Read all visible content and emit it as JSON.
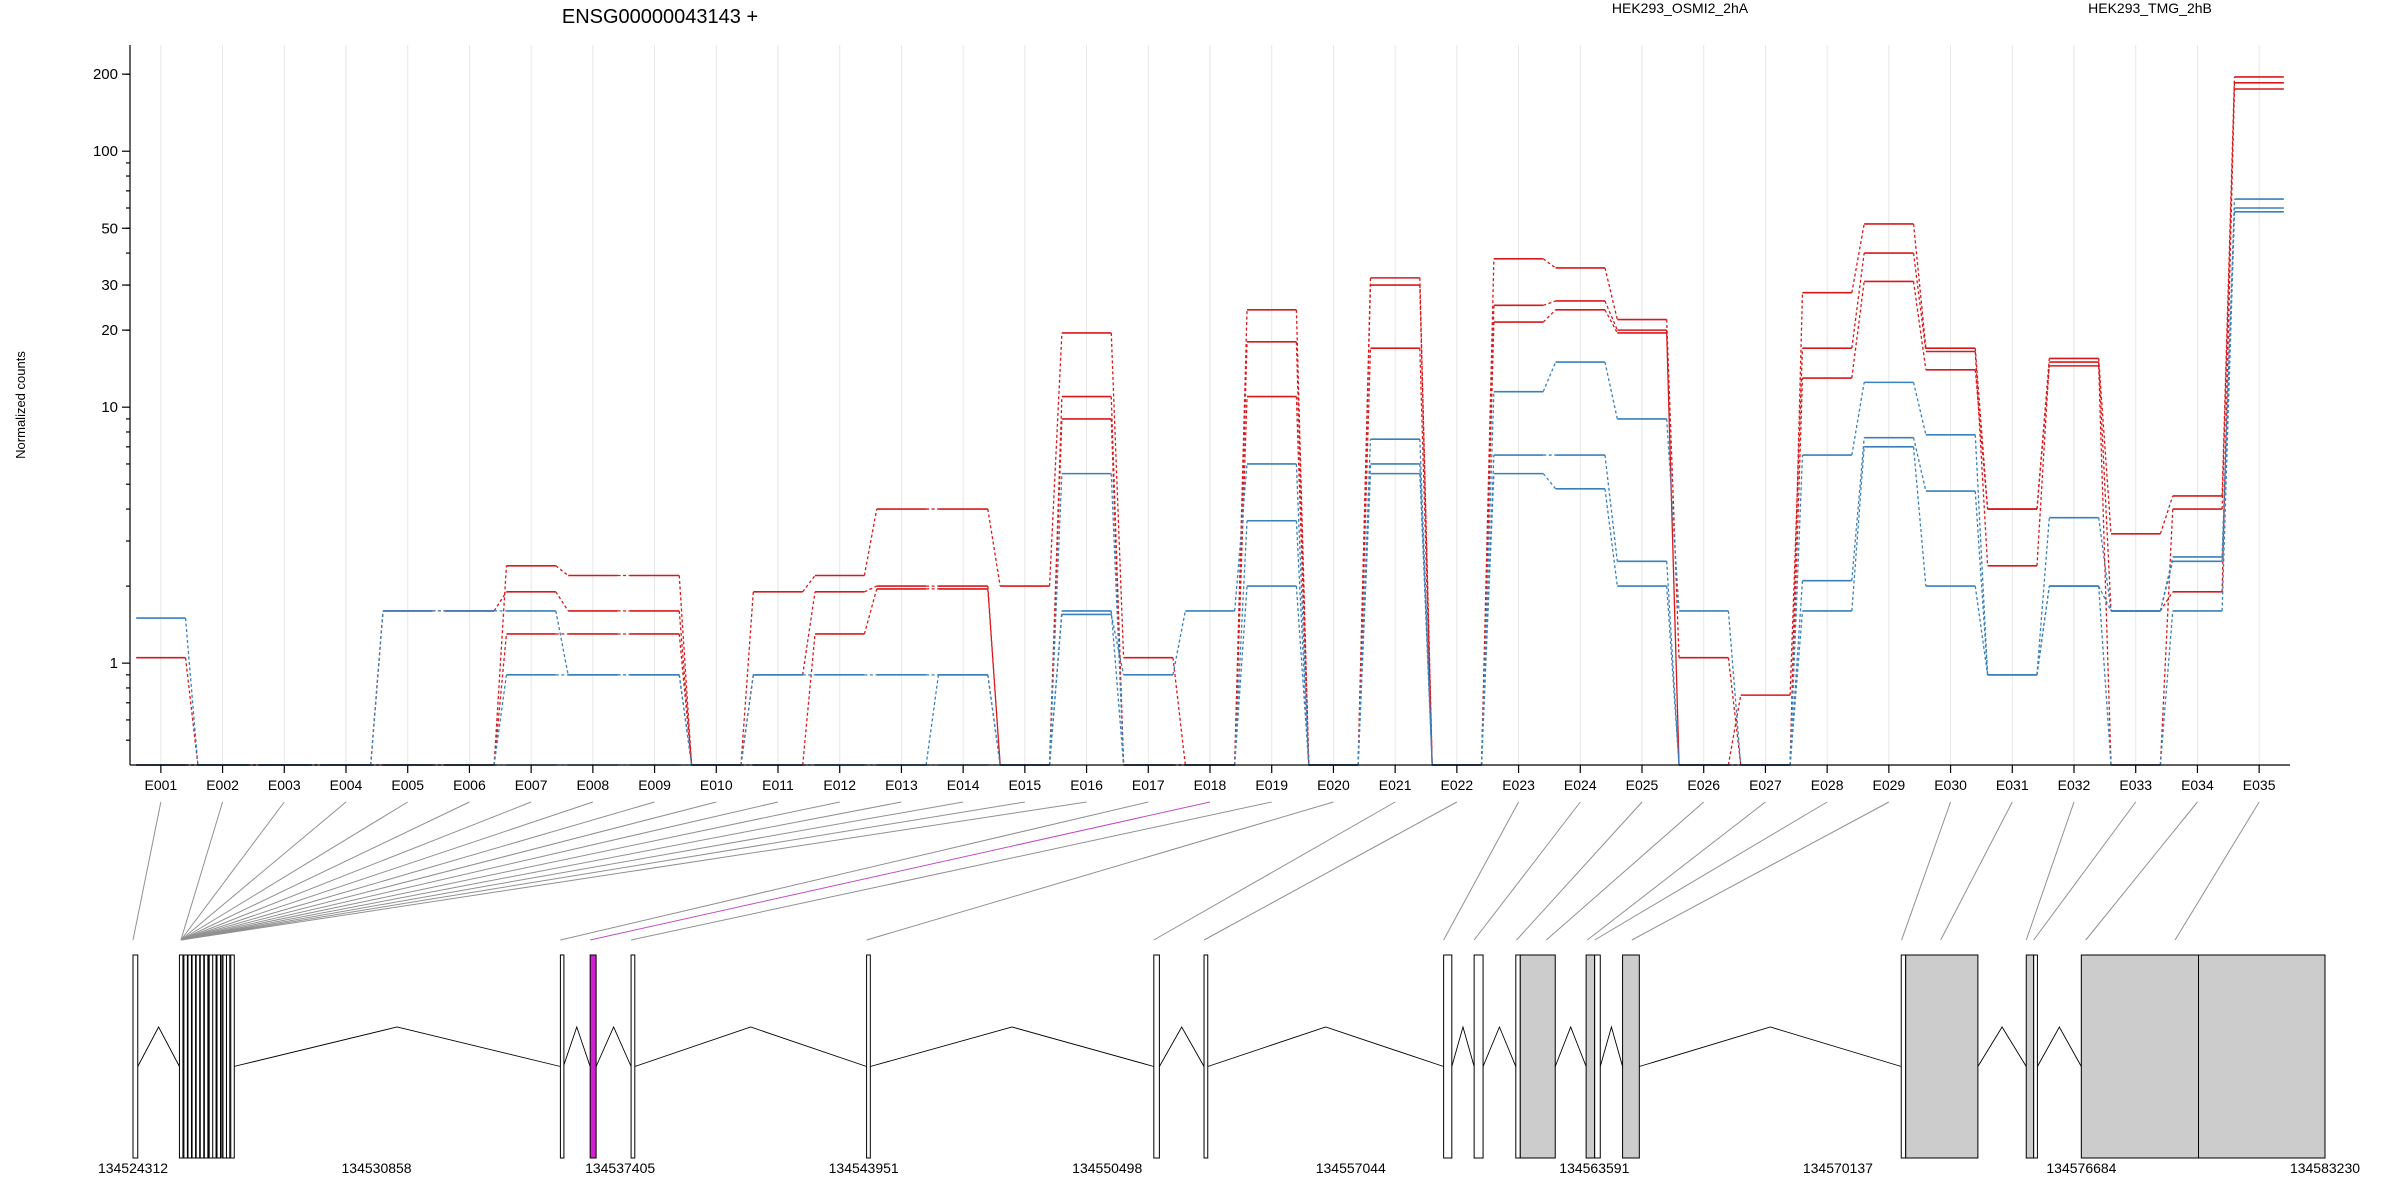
{
  "title": "ENSG00000043143 +",
  "ylabel": "Normalized counts",
  "colors": {
    "HEK293_OSMI2_2hA": "#d7191c",
    "HEK293_TMG_2hB": "#3a80ba",
    "highlight": "#d21fd2",
    "exon_fill_gray": "#cccccc"
  },
  "chart_data": {
    "type": "line",
    "title": "ENSG00000043143 +",
    "ylabel": "Normalized counts",
    "yscale": "log",
    "ylim": [
      0.4,
      260
    ],
    "yticks": [
      1,
      10,
      20,
      30,
      50,
      100,
      200
    ],
    "grid": true,
    "legend_placement": "top-right",
    "categories": [
      "E001",
      "E002",
      "E003",
      "E004",
      "E005",
      "E006",
      "E007",
      "E008",
      "E009",
      "E010",
      "E011",
      "E012",
      "E013",
      "E014",
      "E015",
      "E016",
      "E017",
      "E018",
      "E019",
      "E020",
      "E021",
      "E022",
      "E023",
      "E024",
      "E025",
      "E026",
      "E027",
      "E028",
      "E029",
      "E030",
      "E031",
      "E032",
      "E033",
      "E034",
      "E035"
    ],
    "groups": [
      "HEK293_OSMI2_2hA",
      "HEK293_TMG_2hB"
    ],
    "series": [
      {
        "group": "HEK293_OSMI2_2hA",
        "values": [
          1.05,
          0.4,
          0.4,
          0.4,
          0.4,
          0.4,
          2.4,
          2.2,
          2.2,
          0.4,
          1.9,
          2.2,
          4.0,
          4.0,
          2.0,
          19.5,
          1.05,
          0.4,
          24.0,
          0.4,
          32.0,
          0.4,
          38.0,
          35.0,
          22.0,
          1.05,
          0.4,
          28.0,
          52.0,
          17.0,
          4.0,
          15.5,
          3.2,
          4.5,
          195
        ]
      },
      {
        "group": "HEK293_OSMI2_2hA",
        "values": [
          0.4,
          0.4,
          0.4,
          0.4,
          1.6,
          1.6,
          1.9,
          1.6,
          1.6,
          0.4,
          0.9,
          1.9,
          2.0,
          2.0,
          0.4,
          11.0,
          0.4,
          0.4,
          18.0,
          0.4,
          30.0,
          0.4,
          25.0,
          26.0,
          20.0,
          0.4,
          0.75,
          17.0,
          40.0,
          16.5,
          2.4,
          15.0,
          1.6,
          1.9,
          185
        ]
      },
      {
        "group": "HEK293_OSMI2_2hA",
        "values": [
          0.4,
          0.4,
          0.4,
          0.4,
          0.4,
          0.4,
          1.3,
          1.3,
          1.3,
          0.4,
          0.4,
          1.3,
          1.95,
          1.95,
          0.4,
          9.0,
          0.4,
          0.4,
          11.0,
          0.4,
          17.0,
          0.4,
          21.5,
          24.0,
          19.5,
          0.4,
          0.4,
          13.0,
          31.0,
          14.0,
          4.0,
          14.5,
          0.4,
          4.0,
          175
        ]
      },
      {
        "group": "HEK293_TMG_2hB",
        "values": [
          1.5,
          0.4,
          0.4,
          0.4,
          1.6,
          1.6,
          1.6,
          0.9,
          0.9,
          0.4,
          0.9,
          0.9,
          0.9,
          0.9,
          0.4,
          1.55,
          0.9,
          1.6,
          6.0,
          0.4,
          7.5,
          0.4,
          11.5,
          15.0,
          9.0,
          1.6,
          0.4,
          6.5,
          12.5,
          7.8,
          0.9,
          3.7,
          1.6,
          2.6,
          65
        ]
      },
      {
        "group": "HEK293_TMG_2hB",
        "values": [
          0.4,
          0.4,
          0.4,
          0.4,
          0.4,
          0.4,
          0.9,
          0.9,
          0.9,
          0.4,
          0.4,
          0.4,
          0.4,
          0.9,
          0.4,
          1.6,
          0.4,
          0.4,
          3.6,
          0.4,
          6.0,
          0.4,
          6.5,
          6.5,
          2.5,
          0.4,
          0.4,
          2.1,
          7.6,
          4.7,
          0.9,
          2.0,
          1.6,
          2.5,
          60
        ]
      },
      {
        "group": "HEK293_TMG_2hB",
        "values": [
          0.4,
          0.4,
          0.4,
          0.4,
          0.4,
          0.4,
          0.4,
          0.4,
          0.4,
          0.4,
          0.4,
          0.4,
          0.4,
          0.4,
          0.4,
          5.5,
          0.4,
          0.4,
          2.0,
          0.4,
          5.5,
          0.4,
          5.5,
          4.8,
          2.0,
          0.4,
          0.4,
          1.6,
          7.0,
          2.0,
          0.9,
          2.0,
          0.4,
          1.6,
          58
        ]
      }
    ]
  },
  "legend": [
    {
      "label": "HEK293_OSMI2_2hA",
      "color": "#d7191c"
    },
    {
      "label": "HEK293_TMG_2hB",
      "color": "#3a80ba"
    }
  ],
  "gene_model": {
    "range": [
      134524312,
      134583230
    ],
    "tick_labels": [
      "134524312",
      "134530858",
      "134537405",
      "134543951",
      "134550498",
      "134557044",
      "134563591",
      "134570137",
      "134576684",
      "134583230"
    ],
    "highlight_exon": "E018",
    "exons": [
      {
        "id": "E001",
        "start": 134524312,
        "end": 134524440,
        "fill": "white"
      },
      {
        "id": "E002",
        "start": 134525560,
        "end": 134525650,
        "fill": "white"
      },
      {
        "id": "E003",
        "start": 134525680,
        "end": 134525760,
        "fill": "white"
      },
      {
        "id": "E004",
        "start": 134525790,
        "end": 134525870,
        "fill": "white"
      },
      {
        "id": "E005",
        "start": 134525900,
        "end": 134525980,
        "fill": "white"
      },
      {
        "id": "E006",
        "start": 134526010,
        "end": 134526090,
        "fill": "white"
      },
      {
        "id": "E007",
        "start": 134526120,
        "end": 134526200,
        "fill": "white"
      },
      {
        "id": "E008",
        "start": 134526230,
        "end": 134526310,
        "fill": "white"
      },
      {
        "id": "E009",
        "start": 134526340,
        "end": 134526420,
        "fill": "white"
      },
      {
        "id": "E010",
        "start": 134526450,
        "end": 134526540,
        "fill": "white"
      },
      {
        "id": "E011",
        "start": 134526570,
        "end": 134526660,
        "fill": "white"
      },
      {
        "id": "E012",
        "start": 134526700,
        "end": 134526780,
        "fill": "white"
      },
      {
        "id": "E013",
        "start": 134526820,
        "end": 134526900,
        "fill": "white"
      },
      {
        "id": "E014",
        "start": 134526940,
        "end": 134527020,
        "fill": "white"
      },
      {
        "id": "E015",
        "start": 134526360,
        "end": 134526440,
        "fill": "white"
      },
      {
        "id": "E016",
        "start": 134526730,
        "end": 134526810,
        "fill": "white"
      },
      {
        "id": "E017",
        "start": 134535800,
        "end": 134535880,
        "fill": "white"
      },
      {
        "id": "E018",
        "start": 134536600,
        "end": 134536760,
        "fill": "magenta"
      },
      {
        "id": "E019",
        "start": 134537700,
        "end": 134537800,
        "fill": "white"
      },
      {
        "id": "E020",
        "start": 134544030,
        "end": 134544130,
        "fill": "white"
      },
      {
        "id": "E021",
        "start": 134551750,
        "end": 134551900,
        "fill": "white"
      },
      {
        "id": "E022",
        "start": 134553100,
        "end": 134553200,
        "fill": "white"
      },
      {
        "id": "E023",
        "start": 134559540,
        "end": 134559760,
        "fill": "white"
      },
      {
        "id": "E024",
        "start": 134560360,
        "end": 134560600,
        "fill": "white"
      },
      {
        "id": "E025",
        "start": 134561480,
        "end": 134561600,
        "fill": "white"
      },
      {
        "id": "E026",
        "start": 134561600,
        "end": 134562540,
        "fill": "gray"
      },
      {
        "id": "E027",
        "start": 134563370,
        "end": 134563600,
        "fill": "gray"
      },
      {
        "id": "E028",
        "start": 134563600,
        "end": 134563750,
        "fill": "white"
      },
      {
        "id": "E029",
        "start": 134564350,
        "end": 134564800,
        "fill": "gray"
      },
      {
        "id": "E030",
        "start": 134571840,
        "end": 134571960,
        "fill": "white"
      },
      {
        "id": "E031",
        "start": 134571960,
        "end": 134573900,
        "fill": "gray"
      },
      {
        "id": "E032",
        "start": 134575200,
        "end": 134575400,
        "fill": "gray"
      },
      {
        "id": "E033",
        "start": 134575400,
        "end": 134575500,
        "fill": "white"
      },
      {
        "id": "E034",
        "start": 134576680,
        "end": 134579830,
        "fill": "gray"
      },
      {
        "id": "E035",
        "start": 134579830,
        "end": 134583230,
        "fill": "gray"
      }
    ],
    "connector_targets": [
      {
        "id": "E001",
        "pos": 134524312
      },
      {
        "id": "E002",
        "pos": 134525600
      },
      {
        "id": "E003",
        "pos": 134525600
      },
      {
        "id": "E004",
        "pos": 134525600
      },
      {
        "id": "E005",
        "pos": 134525600
      },
      {
        "id": "E006",
        "pos": 134525600
      },
      {
        "id": "E007",
        "pos": 134525600
      },
      {
        "id": "E008",
        "pos": 134525600
      },
      {
        "id": "E009",
        "pos": 134525600
      },
      {
        "id": "E010",
        "pos": 134525600
      },
      {
        "id": "E011",
        "pos": 134525600
      },
      {
        "id": "E012",
        "pos": 134525600
      },
      {
        "id": "E013",
        "pos": 134525600
      },
      {
        "id": "E014",
        "pos": 134525600
      },
      {
        "id": "E015",
        "pos": 134525600
      },
      {
        "id": "E016",
        "pos": 134525600
      },
      {
        "id": "E017",
        "pos": 134535800
      },
      {
        "id": "E018",
        "pos": 134536600
      },
      {
        "id": "E019",
        "pos": 134537700
      },
      {
        "id": "E020",
        "pos": 134544030
      },
      {
        "id": "E021",
        "pos": 134551750
      },
      {
        "id": "E022",
        "pos": 134553100
      },
      {
        "id": "E023",
        "pos": 134559540
      },
      {
        "id": "E024",
        "pos": 134560360
      },
      {
        "id": "E025",
        "pos": 134561500
      },
      {
        "id": "E026",
        "pos": 134562300
      },
      {
        "id": "E027",
        "pos": 134563400
      },
      {
        "id": "E028",
        "pos": 134563600
      },
      {
        "id": "E029",
        "pos": 134564600
      },
      {
        "id": "E030",
        "pos": 134571850
      },
      {
        "id": "E031",
        "pos": 134572900
      },
      {
        "id": "E032",
        "pos": 134575200
      },
      {
        "id": "E033",
        "pos": 134575400
      },
      {
        "id": "E034",
        "pos": 134576800
      },
      {
        "id": "E035",
        "pos": 134579200
      }
    ]
  }
}
